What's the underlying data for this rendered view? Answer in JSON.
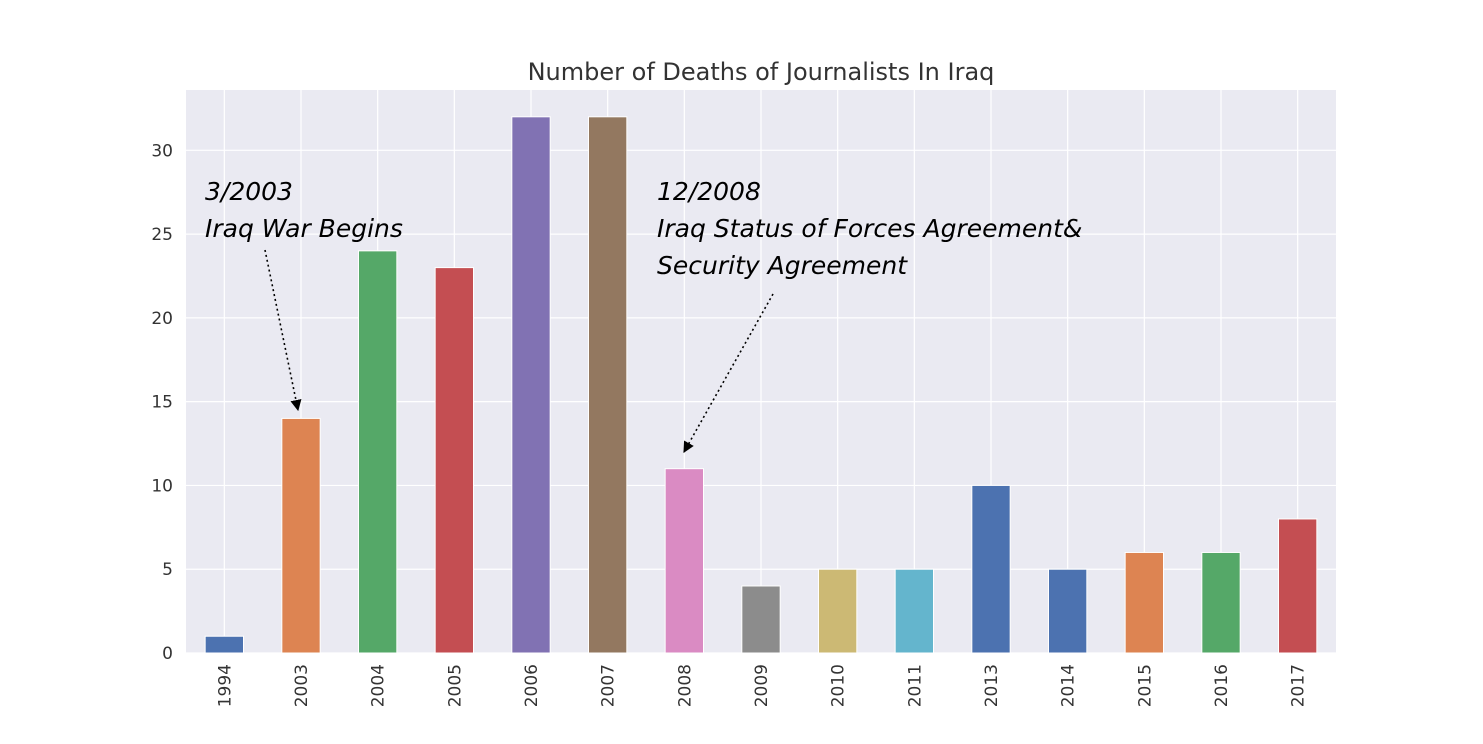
{
  "chart_data": {
    "type": "bar",
    "title": "Number of Deaths of Journalists In Iraq",
    "xlabel": "",
    "ylabel": "",
    "categories": [
      "1994",
      "2003",
      "2004",
      "2005",
      "2006",
      "2007",
      "2008",
      "2009",
      "2010",
      "2011",
      "2013",
      "2014",
      "2015",
      "2016",
      "2017"
    ],
    "values": [
      1,
      14,
      24,
      23,
      32,
      32,
      11,
      4,
      5,
      5,
      10,
      5,
      6,
      6,
      8
    ],
    "colors": [
      "#4c72b0",
      "#dd8452",
      "#55a868",
      "#c44e52",
      "#8172b3",
      "#937860",
      "#da8bc3",
      "#8c8c8c",
      "#ccb974",
      "#64b5cd",
      "#4c72b0",
      "#4c72b0",
      "#dd8452",
      "#55a868",
      "#c44e52"
    ],
    "ylim": [
      0,
      33.6
    ],
    "yticks": [
      0,
      5,
      10,
      15,
      20,
      25,
      30
    ],
    "grid": true,
    "plot_background": "#eaeaf2",
    "annotations": [
      {
        "lines": [
          "3/2003",
          "Iraq War Begins"
        ],
        "target_category": "2003"
      },
      {
        "lines": [
          "12/2008",
          "Iraq Status of Forces Agreement&",
          "Security Agreement"
        ],
        "target_category": "2008"
      }
    ]
  }
}
